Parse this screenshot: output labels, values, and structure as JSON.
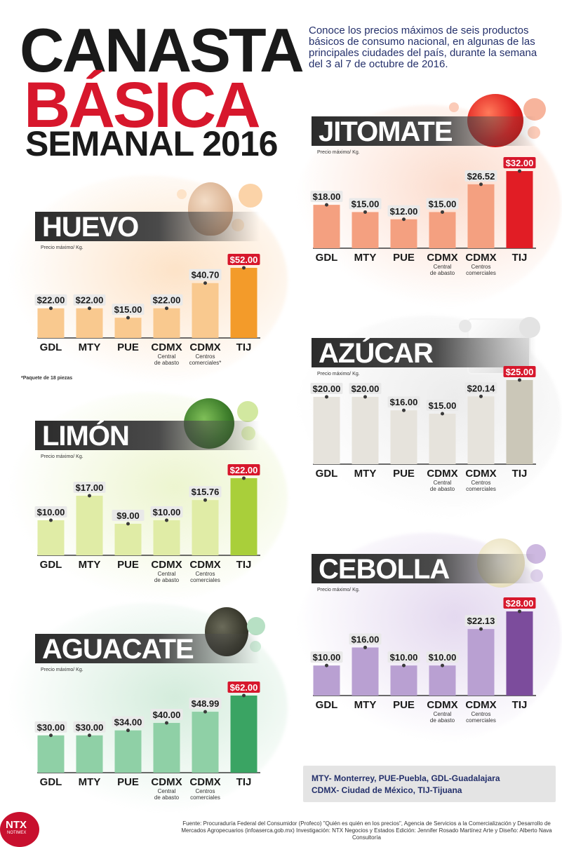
{
  "header": {
    "line1": "CANASTA",
    "line2": "BÁSICA",
    "line3": "SEMANAL 2016",
    "intro": "Conoce los precios máximos de seis productos básicos de consumo nacional, en algunas de las principales ciudades del país, durante la semana del 3 al 7 de octubre de 2016."
  },
  "unit_label": "Precio máximo/ Kg.",
  "chart_data": [
    {
      "type": "bar",
      "title": "HUEVO",
      "unit": "Precio máximo/ Kg.",
      "categories": [
        "GDL",
        "MTY",
        "PUE",
        "CDMX",
        "CDMX",
        "TIJ"
      ],
      "subcategories": [
        "",
        "",
        "",
        "Central de abasto",
        "Centros comerciales*",
        ""
      ],
      "values": [
        22.0,
        22.0,
        15.0,
        22.0,
        40.7,
        52.0
      ],
      "labels": [
        "$22.00",
        "$22.00",
        "$15.00",
        "$22.00",
        "$40.70",
        "$52.00"
      ],
      "colors": {
        "bar": "#f9c98f",
        "max": "#f39b2a",
        "glow": "#fde3c8"
      }
    },
    {
      "type": "bar",
      "title": "LIMÓN",
      "unit": "Precio máximo/ Kg.",
      "categories": [
        "GDL",
        "MTY",
        "PUE",
        "CDMX",
        "CDMX",
        "TIJ"
      ],
      "subcategories": [
        "",
        "",
        "",
        "Central de abasto",
        "Centros comerciales",
        ""
      ],
      "values": [
        10.0,
        17.0,
        9.0,
        10.0,
        15.76,
        22.0
      ],
      "labels": [
        "$10.00",
        "$17.00",
        "$9.00",
        "$10.00",
        "$15.76",
        "$22.00"
      ],
      "colors": {
        "bar": "#e0eca6",
        "max": "#a9cf3a",
        "glow": "#edf5d0"
      }
    },
    {
      "type": "bar",
      "title": "AGUACATE",
      "unit": "Precio máximo/ Kg.",
      "categories": [
        "GDL",
        "MTY",
        "PUE",
        "CDMX",
        "CDMX",
        "TIJ"
      ],
      "subcategories": [
        "",
        "",
        "",
        "Central de abasto",
        "Centros comerciales",
        ""
      ],
      "values": [
        30.0,
        30.0,
        34.0,
        40.0,
        48.99,
        62.0
      ],
      "labels": [
        "$30.00",
        "$30.00",
        "$34.00",
        "$40.00",
        "$48.99",
        "$62.00"
      ],
      "colors": {
        "bar": "#8fd0a6",
        "max": "#3aa463",
        "glow": "#d4ecdc"
      }
    },
    {
      "type": "bar",
      "title": "JITOMATE",
      "unit": "Precio máximo/ Kg.",
      "categories": [
        "GDL",
        "MTY",
        "PUE",
        "CDMX",
        "CDMX",
        "TIJ"
      ],
      "subcategories": [
        "",
        "",
        "",
        "Central de abasto",
        "Centros comerciales",
        ""
      ],
      "values": [
        18.0,
        15.0,
        12.0,
        15.0,
        26.52,
        32.0
      ],
      "labels": [
        "$18.00",
        "$15.00",
        "$12.00",
        "$15.00",
        "$26.52",
        "$32.00"
      ],
      "colors": {
        "bar": "#f4a080",
        "max": "#e11d25",
        "glow": "#fcdccd"
      }
    },
    {
      "type": "bar",
      "title": "AZÚCAR",
      "unit": "Precio máximo/ Kg.",
      "categories": [
        "GDL",
        "MTY",
        "PUE",
        "CDMX",
        "CDMX",
        "TIJ"
      ],
      "subcategories": [
        "",
        "",
        "",
        "Central de abasto",
        "Centros comerciales",
        ""
      ],
      "values": [
        20.0,
        20.0,
        16.0,
        15.0,
        20.14,
        25.0
      ],
      "labels": [
        "$20.00",
        "$20.00",
        "$16.00",
        "$15.00",
        "$20.14",
        "$25.00"
      ],
      "colors": {
        "bar": "#e6e3dc",
        "max": "#cbc7b8",
        "glow": "#ececec"
      }
    },
    {
      "type": "bar",
      "title": "CEBOLLA",
      "unit": "Precio máximo/ Kg.",
      "categories": [
        "GDL",
        "MTY",
        "PUE",
        "CDMX",
        "CDMX",
        "TIJ"
      ],
      "subcategories": [
        "",
        "",
        "",
        "Central de abasto",
        "Centros comerciales",
        ""
      ],
      "values": [
        10.0,
        16.0,
        10.0,
        10.0,
        22.13,
        28.0
      ],
      "labels": [
        "$10.00",
        "$16.00",
        "$10.00",
        "$10.00",
        "$22.13",
        "$28.00"
      ],
      "colors": {
        "bar": "#b9a0d2",
        "max": "#7c4c9c",
        "glow": "#e4d9ef"
      }
    }
  ],
  "footnote": "*Paquete de 18 piezas",
  "legend": {
    "line1": "MTY- Monterrey, PUE-Puebla,  GDL-Guadalajara",
    "line2": "CDMX- Ciudad de México, TIJ-Tijuana"
  },
  "source": {
    "text": "Fuente: Procuraduría Federal del Consumidor (Profeco) \"Quién es quién en los precios\", Agencia de Servicios a la Comercialización y Desarrollo de Mercados Agropecuarios (infoaserca.gob.mx) Investigación: NTX Negocios y Estados Edición: Jennifer Rosado Martínez  Arte y Diseño: Alberto Nava Consultoría"
  },
  "logo": {
    "text": "NTX",
    "sub": "NOTIMEX"
  }
}
